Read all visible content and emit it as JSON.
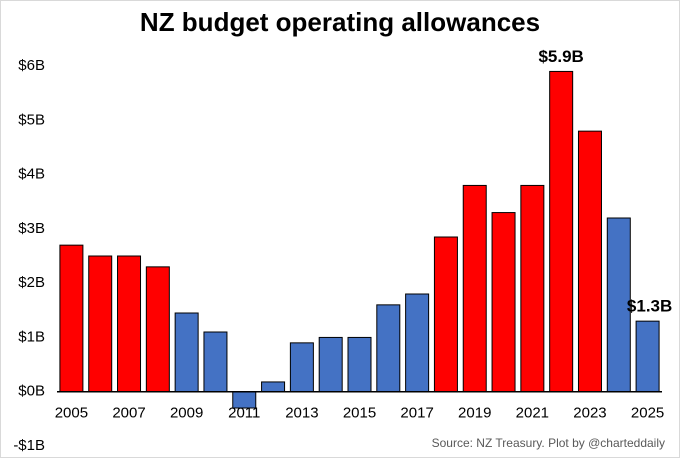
{
  "chart_data": {
    "type": "bar",
    "title": "NZ budget operating allowances",
    "categories": [
      "2005",
      null,
      "2007",
      null,
      "2009",
      null,
      "2011",
      null,
      "2013",
      null,
      "2015",
      null,
      "2017",
      null,
      "2019",
      null,
      "2021",
      null,
      "2023",
      null,
      "2025"
    ],
    "values": [
      2.7,
      2.5,
      2.5,
      2.3,
      1.45,
      1.1,
      -0.3,
      0.18,
      0.9,
      1.0,
      1.0,
      1.6,
      1.8,
      2.85,
      3.8,
      3.3,
      3.8,
      5.9,
      4.8,
      3.2,
      1.3
    ],
    "value_labels": [
      null,
      null,
      null,
      null,
      null,
      null,
      null,
      null,
      null,
      null,
      null,
      null,
      null,
      null,
      null,
      null,
      null,
      "$5.9B",
      null,
      null,
      "$1.3B"
    ],
    "colors": [
      "#ff0000",
      "#ff0000",
      "#ff0000",
      "#ff0000",
      "#4472c4",
      "#4472c4",
      "#4472c4",
      "#4472c4",
      "#4472c4",
      "#4472c4",
      "#4472c4",
      "#4472c4",
      "#4472c4",
      "#ff0000",
      "#ff0000",
      "#ff0000",
      "#ff0000",
      "#ff0000",
      "#ff0000",
      "#4472c4",
      "#4472c4"
    ],
    "ylim": [
      -1,
      6
    ],
    "yticks": [
      {
        "value": -1,
        "label": "-$1B"
      },
      {
        "value": 0,
        "label": "$0B"
      },
      {
        "value": 1,
        "label": "$1B"
      },
      {
        "value": 2,
        "label": "$2B"
      },
      {
        "value": 3,
        "label": "$3B"
      },
      {
        "value": 4,
        "label": "$4B"
      },
      {
        "value": 5,
        "label": "$5B"
      },
      {
        "value": 6,
        "label": "$6B"
      }
    ],
    "source": "Source: NZ Treasury. Plot by @charteddaily"
  }
}
